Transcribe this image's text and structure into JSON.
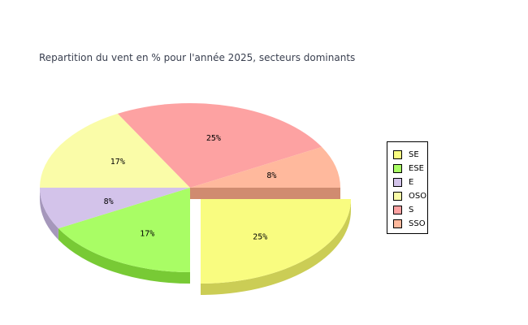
{
  "chart_data": {
    "type": "pie",
    "title": "Repartition du vent en % pour l'année 2025, secteurs dominants",
    "legend_position": "right",
    "exploded": "SE",
    "slices": [
      {
        "name": "SE",
        "value": 25,
        "label": "25%",
        "color": "#f9fc80",
        "side": "#cbcd55"
      },
      {
        "name": "ESE",
        "value": 17,
        "label": "17%",
        "color": "#a9fd65",
        "side": "#78ca35"
      },
      {
        "name": "E",
        "value": 8,
        "label": "8%",
        "color": "#d3c3ea",
        "side": "#a597bb"
      },
      {
        "name": "OSO",
        "value": 17,
        "label": "17%",
        "color": "#fafca8",
        "side": "#c9cb7c"
      },
      {
        "name": "S",
        "value": 25,
        "label": "25%",
        "color": "#fda2a2",
        "side": "#c97575"
      },
      {
        "name": "SSO",
        "value": 8,
        "label": "8%",
        "color": "#ffb99d",
        "side": "#d08b70"
      }
    ]
  }
}
